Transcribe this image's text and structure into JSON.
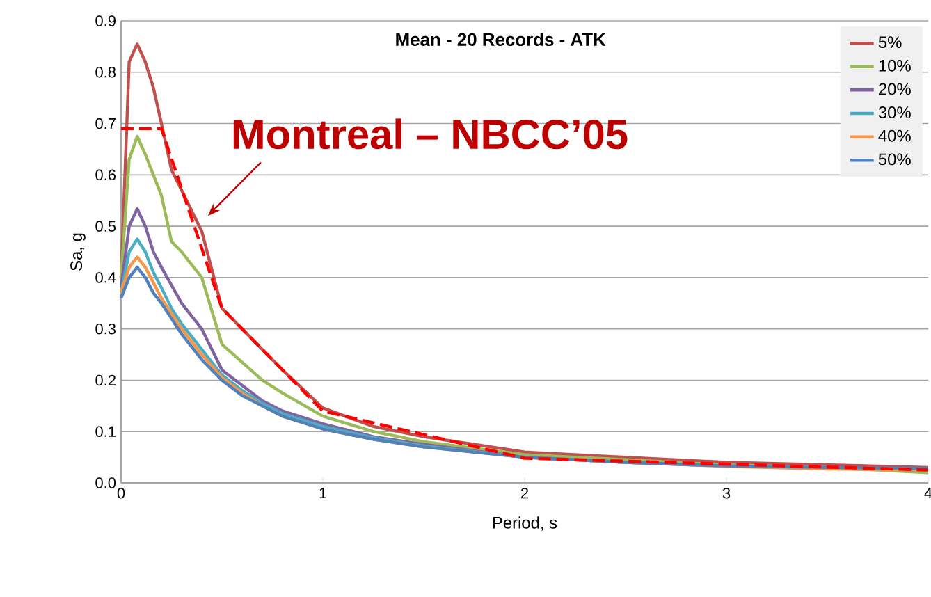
{
  "chart_data": {
    "type": "line",
    "title": "Mean - 20 Records - ATK",
    "xlabel": "Period, s",
    "ylabel": "Sa, g",
    "x": [
      0,
      0.04,
      0.08,
      0.12,
      0.16,
      0.2,
      0.25,
      0.3,
      0.4,
      0.5,
      0.6,
      0.7,
      0.8,
      1.0,
      1.25,
      1.5,
      2,
      2.5,
      3,
      3.5,
      4
    ],
    "series": [
      {
        "name": "5%",
        "color": "#c0504d",
        "values": [
          0.4,
          0.82,
          0.855,
          0.82,
          0.77,
          0.7,
          0.61,
          0.57,
          0.49,
          0.34,
          0.3,
          0.26,
          0.22,
          0.146,
          0.11,
          0.09,
          0.06,
          0.05,
          0.04,
          0.035,
          0.03
        ]
      },
      {
        "name": "10%",
        "color": "#9bbb59",
        "values": [
          0.4,
          0.63,
          0.675,
          0.64,
          0.6,
          0.56,
          0.47,
          0.45,
          0.4,
          0.27,
          0.235,
          0.2,
          0.175,
          0.13,
          0.1,
          0.08,
          0.055,
          0.045,
          0.035,
          0.03,
          0.02
        ]
      },
      {
        "name": "20%",
        "color": "#8064a2",
        "values": [
          0.38,
          0.5,
          0.534,
          0.5,
          0.45,
          0.42,
          0.385,
          0.35,
          0.3,
          0.22,
          0.19,
          0.16,
          0.14,
          0.115,
          0.09,
          0.075,
          0.05,
          0.04,
          0.033,
          0.028,
          0.025
        ]
      },
      {
        "name": "30%",
        "color": "#4bacc6",
        "values": [
          0.37,
          0.45,
          0.475,
          0.45,
          0.41,
          0.38,
          0.34,
          0.31,
          0.26,
          0.21,
          0.18,
          0.155,
          0.135,
          0.11,
          0.088,
          0.072,
          0.05,
          0.04,
          0.033,
          0.028,
          0.025
        ]
      },
      {
        "name": "40%",
        "color": "#f79646",
        "values": [
          0.37,
          0.42,
          0.44,
          0.42,
          0.39,
          0.36,
          0.33,
          0.3,
          0.25,
          0.205,
          0.175,
          0.15,
          0.13,
          0.105,
          0.085,
          0.07,
          0.05,
          0.04,
          0.032,
          0.027,
          0.025
        ]
      },
      {
        "name": "50%",
        "color": "#4f81bd",
        "values": [
          0.36,
          0.4,
          0.42,
          0.4,
          0.37,
          0.35,
          0.32,
          0.29,
          0.24,
          0.2,
          0.17,
          0.15,
          0.13,
          0.105,
          0.085,
          0.07,
          0.05,
          0.04,
          0.033,
          0.03,
          0.028
        ]
      },
      {
        "name": "Montreal – NBCC’05",
        "color": "#ff0000",
        "line_style": "dashed",
        "x": [
          0,
          0.2,
          0.5,
          1,
          2,
          4
        ],
        "values": [
          0.69,
          0.69,
          0.34,
          0.14,
          0.048,
          0.025
        ]
      }
    ],
    "xlim": [
      0,
      4
    ],
    "ylim": [
      0,
      0.9
    ],
    "xticks": [
      0,
      1,
      2,
      3,
      4
    ],
    "yticks": [
      {
        "value": 0,
        "label": "0.0"
      },
      0.1,
      0.2,
      0.3,
      0.4,
      0.5,
      0.6,
      0.7,
      0.8,
      0.9
    ],
    "grid": "y",
    "legend": "top right",
    "marker": "none"
  }
}
